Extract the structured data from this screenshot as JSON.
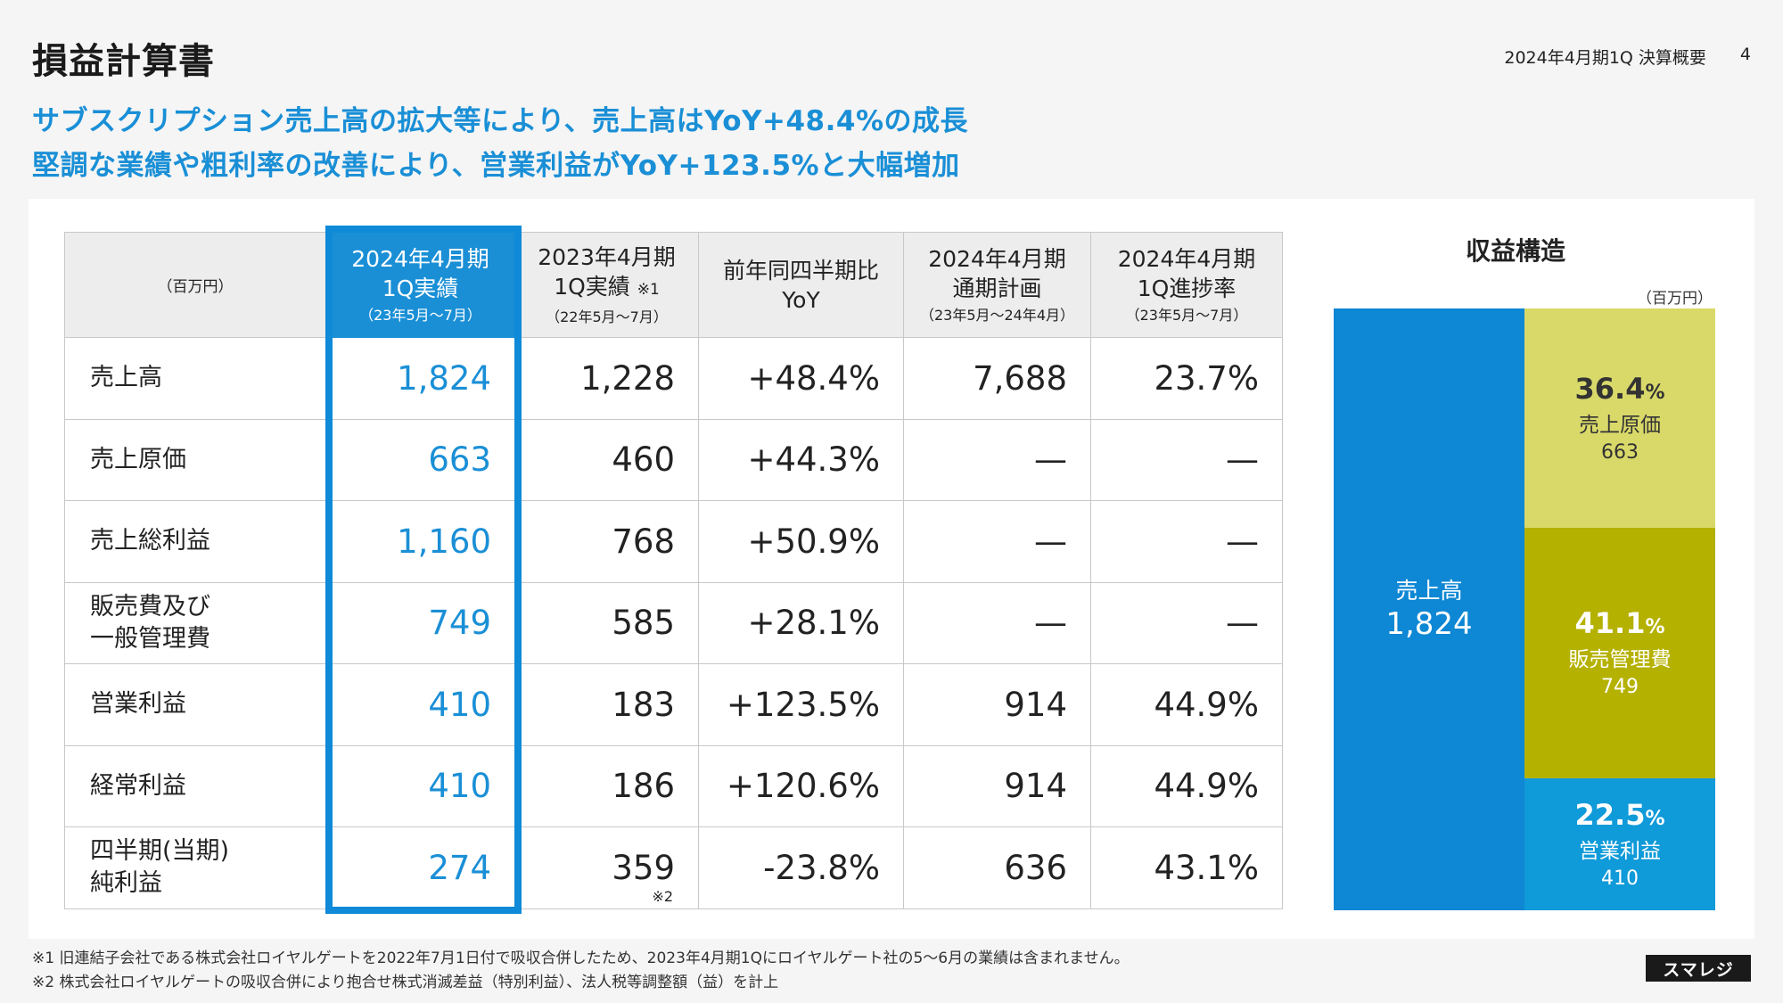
{
  "header": {
    "title": "損益計算書",
    "period_label": "2024年4月期1Q 決算概要",
    "page_number": "4"
  },
  "headline": {
    "line1": "サブスクリプション売上高の拡大等により、売上高はYoY+48.4%の成長",
    "line2": "堅調な業績や粗利率の改善により、営業利益がYoY+123.5%と大幅増加"
  },
  "table": {
    "unit": "（百万円）",
    "columns": [
      {
        "line1": "2024年4月期",
        "line2": "1Q実績",
        "note": "",
        "sub": "（23年5月～7月）"
      },
      {
        "line1": "2023年4月期",
        "line2": "1Q実績",
        "note": "※1",
        "sub": "（22年5月～7月）"
      },
      {
        "line1": "前年同四半期比",
        "line2": "YoY",
        "note": "",
        "sub": ""
      },
      {
        "line1": "2024年4月期",
        "line2": "通期計画",
        "note": "",
        "sub": "（23年5月～24年4月）"
      },
      {
        "line1": "2024年4月期",
        "line2": "1Q進捗率",
        "note": "",
        "sub": "（23年5月～7月）"
      }
    ],
    "rows": [
      {
        "label1": "売上高",
        "label2": "",
        "cur": "1,824",
        "prev": "1,228",
        "prev_note": "",
        "yoy": "+48.4%",
        "plan": "7,688",
        "progress": "23.7%"
      },
      {
        "label1": "売上原価",
        "label2": "",
        "cur": "663",
        "prev": "460",
        "prev_note": "",
        "yoy": "+44.3%",
        "plan": "—",
        "progress": "—"
      },
      {
        "label1": "売上総利益",
        "label2": "",
        "cur": "1,160",
        "prev": "768",
        "prev_note": "",
        "yoy": "+50.9%",
        "plan": "—",
        "progress": "—"
      },
      {
        "label1": "販売費及び",
        "label2": "一般管理費",
        "cur": "749",
        "prev": "585",
        "prev_note": "",
        "yoy": "+28.1%",
        "plan": "—",
        "progress": "—"
      },
      {
        "label1": "営業利益",
        "label2": "",
        "cur": "410",
        "prev": "183",
        "prev_note": "",
        "yoy": "+123.5%",
        "plan": "914",
        "progress": "44.9%"
      },
      {
        "label1": "経常利益",
        "label2": "",
        "cur": "410",
        "prev": "186",
        "prev_note": "",
        "yoy": "+120.6%",
        "plan": "914",
        "progress": "44.9%"
      },
      {
        "label1": "四半期(当期)",
        "label2": "純利益",
        "cur": "274",
        "prev": "359",
        "prev_note": "※2",
        "yoy": "-23.8%",
        "plan": "636",
        "progress": "43.1%"
      }
    ]
  },
  "structure": {
    "title": "収益構造",
    "unit": "（百万円）",
    "sales": {
      "label": "売上高",
      "value": "1,824",
      "color": "#0e87d4"
    },
    "blocks": [
      {
        "pct": "36.4",
        "pct_sign": "%",
        "label": "売上原価",
        "value": "663",
        "share": 0.364,
        "color": "#d9d96a"
      },
      {
        "pct": "41.1",
        "pct_sign": "%",
        "label": "販売管理費",
        "value": "749",
        "share": 0.411,
        "color": "#b5b100"
      },
      {
        "pct": "22.5",
        "pct_sign": "%",
        "label": "営業利益",
        "value": "410",
        "share": 0.225,
        "color": "#0f9ad9"
      }
    ]
  },
  "footnotes": {
    "f1": "※1 旧連結子会社である株式会社ロイヤルゲートを2022年7月1日付で吸収合併したため、2023年4月期1Qにロイヤルゲート社の5～6月の業績は含まれません。",
    "f2": "※2 株式会社ロイヤルゲートの吸収合併により抱合せ株式消滅差益（特別利益）、法人税等調整額（益）を計上"
  },
  "logo": {
    "text": "スマレジ"
  }
}
